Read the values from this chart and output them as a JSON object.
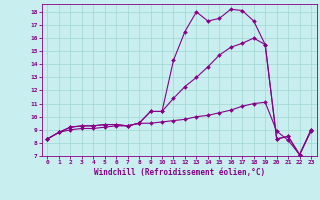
{
  "xlabel": "Windchill (Refroidissement éolien,°C)",
  "background_color": "#c8eef0",
  "grid_color": "#a0d8d0",
  "line_color": "#880088",
  "xlim": [
    -0.5,
    23.5
  ],
  "ylim": [
    7,
    18.6
  ],
  "yticks": [
    7,
    8,
    9,
    10,
    11,
    12,
    13,
    14,
    15,
    16,
    17,
    18
  ],
  "xticks": [
    0,
    1,
    2,
    3,
    4,
    5,
    6,
    7,
    8,
    9,
    10,
    11,
    12,
    13,
    14,
    15,
    16,
    17,
    18,
    19,
    20,
    21,
    22,
    23
  ],
  "line1_x": [
    0,
    1,
    2,
    3,
    4,
    5,
    6,
    7,
    8,
    9,
    10,
    11,
    12,
    13,
    14,
    15,
    16,
    17,
    18,
    19,
    20,
    21,
    22,
    23
  ],
  "line1_y": [
    8.3,
    8.8,
    9.2,
    9.3,
    9.3,
    9.4,
    9.4,
    9.3,
    9.5,
    10.4,
    10.4,
    14.3,
    16.5,
    18.0,
    17.3,
    17.5,
    18.2,
    18.1,
    17.3,
    15.5,
    8.3,
    8.5,
    7.1,
    9.0
  ],
  "line2_x": [
    0,
    1,
    2,
    3,
    4,
    5,
    6,
    7,
    8,
    9,
    10,
    11,
    12,
    13,
    14,
    15,
    16,
    17,
    18,
    19,
    20,
    21,
    22,
    23
  ],
  "line2_y": [
    8.3,
    8.8,
    9.2,
    9.3,
    9.3,
    9.4,
    9.4,
    9.3,
    9.5,
    10.4,
    10.4,
    11.4,
    12.3,
    13.0,
    13.8,
    14.7,
    15.3,
    15.6,
    16.0,
    15.5,
    8.3,
    8.5,
    7.1,
    9.0
  ],
  "line3_x": [
    0,
    1,
    2,
    3,
    4,
    5,
    6,
    7,
    8,
    9,
    10,
    11,
    12,
    13,
    14,
    15,
    16,
    17,
    18,
    19,
    20,
    21,
    22,
    23
  ],
  "line3_y": [
    8.3,
    8.8,
    9.0,
    9.1,
    9.1,
    9.2,
    9.3,
    9.3,
    9.5,
    9.5,
    9.6,
    9.7,
    9.8,
    10.0,
    10.1,
    10.3,
    10.5,
    10.8,
    11.0,
    11.1,
    8.9,
    8.2,
    7.1,
    8.9
  ]
}
